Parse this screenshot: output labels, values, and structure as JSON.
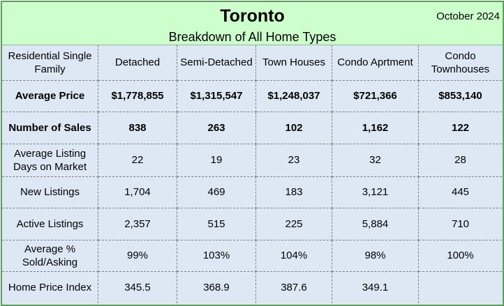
{
  "header": {
    "title": "Toronto",
    "subtitle": "Breakdown of All Home Types",
    "date": "October 2024"
  },
  "columns": [
    "Residential Single Family",
    "Detached",
    "Semi-Detached",
    "Town Houses",
    "Condo Aprtment",
    "Condo Townhouses"
  ],
  "rows": [
    {
      "label": "Average Price",
      "bold": true,
      "values": [
        "$1,778,855",
        "$1,315,547",
        "$1,248,037",
        "$721,366",
        "$853,140"
      ]
    },
    {
      "label": "Number of Sales",
      "bold": true,
      "values": [
        "838",
        "263",
        "102",
        "1,162",
        "122"
      ]
    },
    {
      "label": "Average Listing Days on Market",
      "bold": false,
      "values": [
        "22",
        "19",
        "23",
        "32",
        "28"
      ]
    },
    {
      "label": "New Listings",
      "bold": false,
      "values": [
        "1,704",
        "469",
        "183",
        "3,121",
        "445"
      ]
    },
    {
      "label": "Active Listings",
      "bold": false,
      "values": [
        "2,357",
        "515",
        "225",
        "5,884",
        "710"
      ]
    },
    {
      "label": "Average % Sold/Asking",
      "bold": false,
      "values": [
        "99%",
        "103%",
        "104%",
        "98%",
        "100%"
      ]
    },
    {
      "label": "Home Price Index",
      "bold": false,
      "values": [
        "345.5",
        "368.9",
        "387.6",
        "349.1",
        ""
      ]
    }
  ]
}
